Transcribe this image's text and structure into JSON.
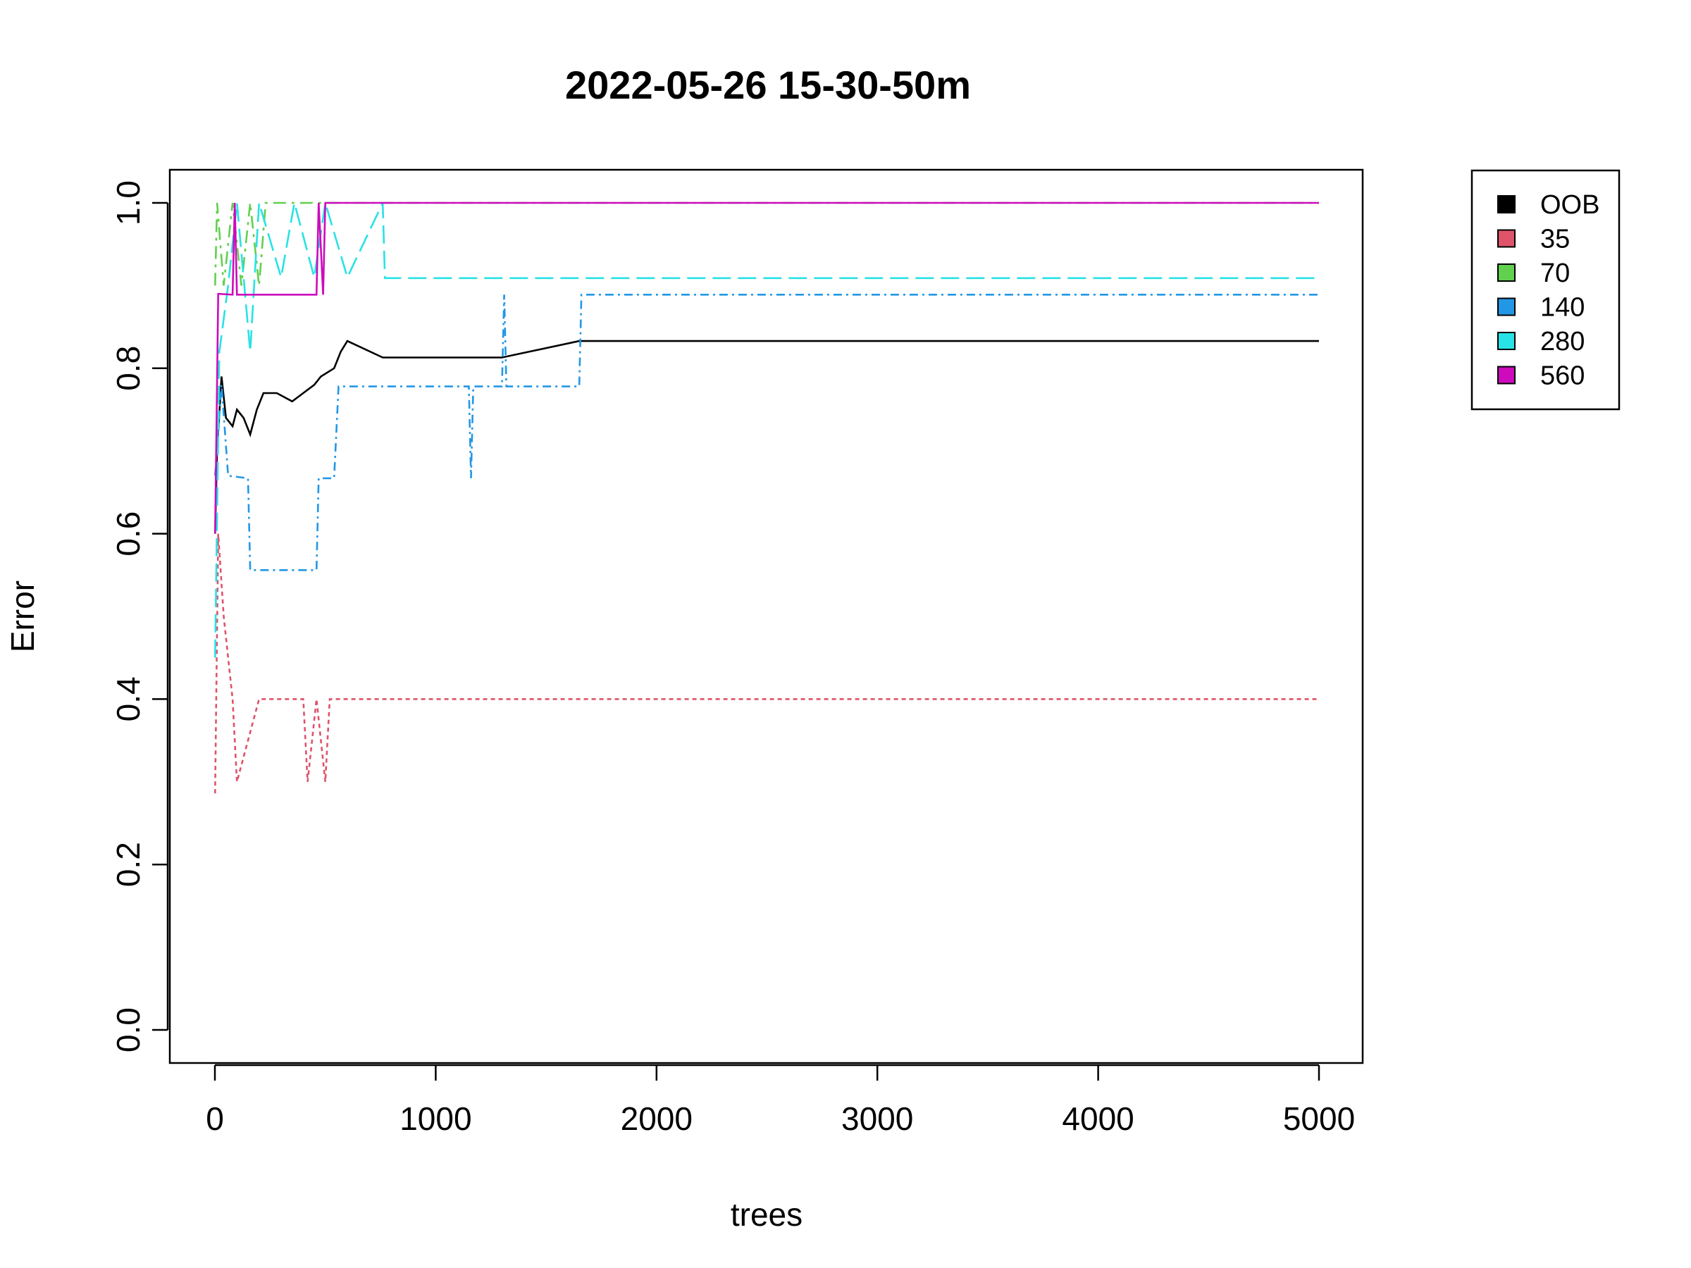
{
  "chart_data": {
    "type": "line",
    "title": "2022-05-26 15-30-50m",
    "xlabel": "trees",
    "ylabel": "Error",
    "xlim": [
      0,
      5000
    ],
    "ylim": [
      0,
      1
    ],
    "xticks": [
      "0",
      "1000",
      "2000",
      "3000",
      "4000",
      "5000"
    ],
    "yticks": [
      "0.0",
      "0.2",
      "0.4",
      "0.6",
      "0.8",
      "1.0"
    ],
    "legend_position": "top-right outside",
    "series": [
      {
        "name": "OOB",
        "color": "#000000",
        "dash": "solid",
        "points": [
          [
            1,
            0.6
          ],
          [
            10,
            0.7
          ],
          [
            30,
            0.79
          ],
          [
            50,
            0.74
          ],
          [
            80,
            0.73
          ],
          [
            100,
            0.75
          ],
          [
            130,
            0.74
          ],
          [
            160,
            0.72
          ],
          [
            190,
            0.75
          ],
          [
            220,
            0.77
          ],
          [
            280,
            0.77
          ],
          [
            350,
            0.76
          ],
          [
            400,
            0.77
          ],
          [
            450,
            0.78
          ],
          [
            480,
            0.79
          ],
          [
            540,
            0.8
          ],
          [
            570,
            0.82
          ],
          [
            600,
            0.833
          ],
          [
            760,
            0.813
          ],
          [
            1160,
            0.813
          ],
          [
            1300,
            0.813
          ],
          [
            1650,
            0.833
          ],
          [
            5000,
            0.833
          ]
        ]
      },
      {
        "name": "35",
        "color": "#DF536B",
        "dash": "6,5",
        "points": [
          [
            1,
            0.286
          ],
          [
            15,
            0.6
          ],
          [
            40,
            0.5
          ],
          [
            80,
            0.4
          ],
          [
            100,
            0.3
          ],
          [
            150,
            0.35
          ],
          [
            200,
            0.4
          ],
          [
            400,
            0.4
          ],
          [
            420,
            0.3
          ],
          [
            460,
            0.4
          ],
          [
            500,
            0.3
          ],
          [
            520,
            0.4
          ],
          [
            5000,
            0.4
          ]
        ]
      },
      {
        "name": "70",
        "color": "#61D04F",
        "dash": "18,8,4,8",
        "points": [
          [
            1,
            0.9
          ],
          [
            10,
            1.0
          ],
          [
            40,
            0.9
          ],
          [
            80,
            1.0
          ],
          [
            120,
            0.9
          ],
          [
            160,
            1.0
          ],
          [
            200,
            0.9
          ],
          [
            230,
            1.0
          ],
          [
            5000,
            1.0
          ]
        ]
      },
      {
        "name": "140",
        "color": "#2297E6",
        "dash": "12,6,3,6",
        "points": [
          [
            1,
            0.67
          ],
          [
            30,
            0.78
          ],
          [
            60,
            0.67
          ],
          [
            150,
            0.667
          ],
          [
            160,
            0.556
          ],
          [
            460,
            0.556
          ],
          [
            470,
            0.667
          ],
          [
            540,
            0.667
          ],
          [
            560,
            0.778
          ],
          [
            1150,
            0.778
          ],
          [
            1160,
            0.667
          ],
          [
            1170,
            0.778
          ],
          [
            1300,
            0.778
          ],
          [
            1310,
            0.889
          ],
          [
            1320,
            0.778
          ],
          [
            1650,
            0.778
          ],
          [
            1660,
            0.889
          ],
          [
            5000,
            0.889
          ]
        ]
      },
      {
        "name": "280",
        "color": "#28E2E5",
        "dash": "26,10",
        "points": [
          [
            1,
            0.45
          ],
          [
            20,
            0.82
          ],
          [
            60,
            0.9
          ],
          [
            100,
            1.0
          ],
          [
            160,
            0.82
          ],
          [
            200,
            1.0
          ],
          [
            300,
            0.91
          ],
          [
            360,
            1.0
          ],
          [
            450,
            0.91
          ],
          [
            500,
            1.0
          ],
          [
            600,
            0.91
          ],
          [
            760,
            1.0
          ],
          [
            770,
            0.909
          ],
          [
            5000,
            0.909
          ]
        ]
      },
      {
        "name": "560",
        "color": "#CD0BBC",
        "dash": "solid",
        "points": [
          [
            1,
            0.6
          ],
          [
            15,
            0.89
          ],
          [
            80,
            0.889
          ],
          [
            90,
            1.0
          ],
          [
            100,
            0.889
          ],
          [
            460,
            0.889
          ],
          [
            470,
            1.0
          ],
          [
            490,
            0.889
          ],
          [
            500,
            1.0
          ],
          [
            5000,
            1.0
          ]
        ]
      }
    ]
  }
}
